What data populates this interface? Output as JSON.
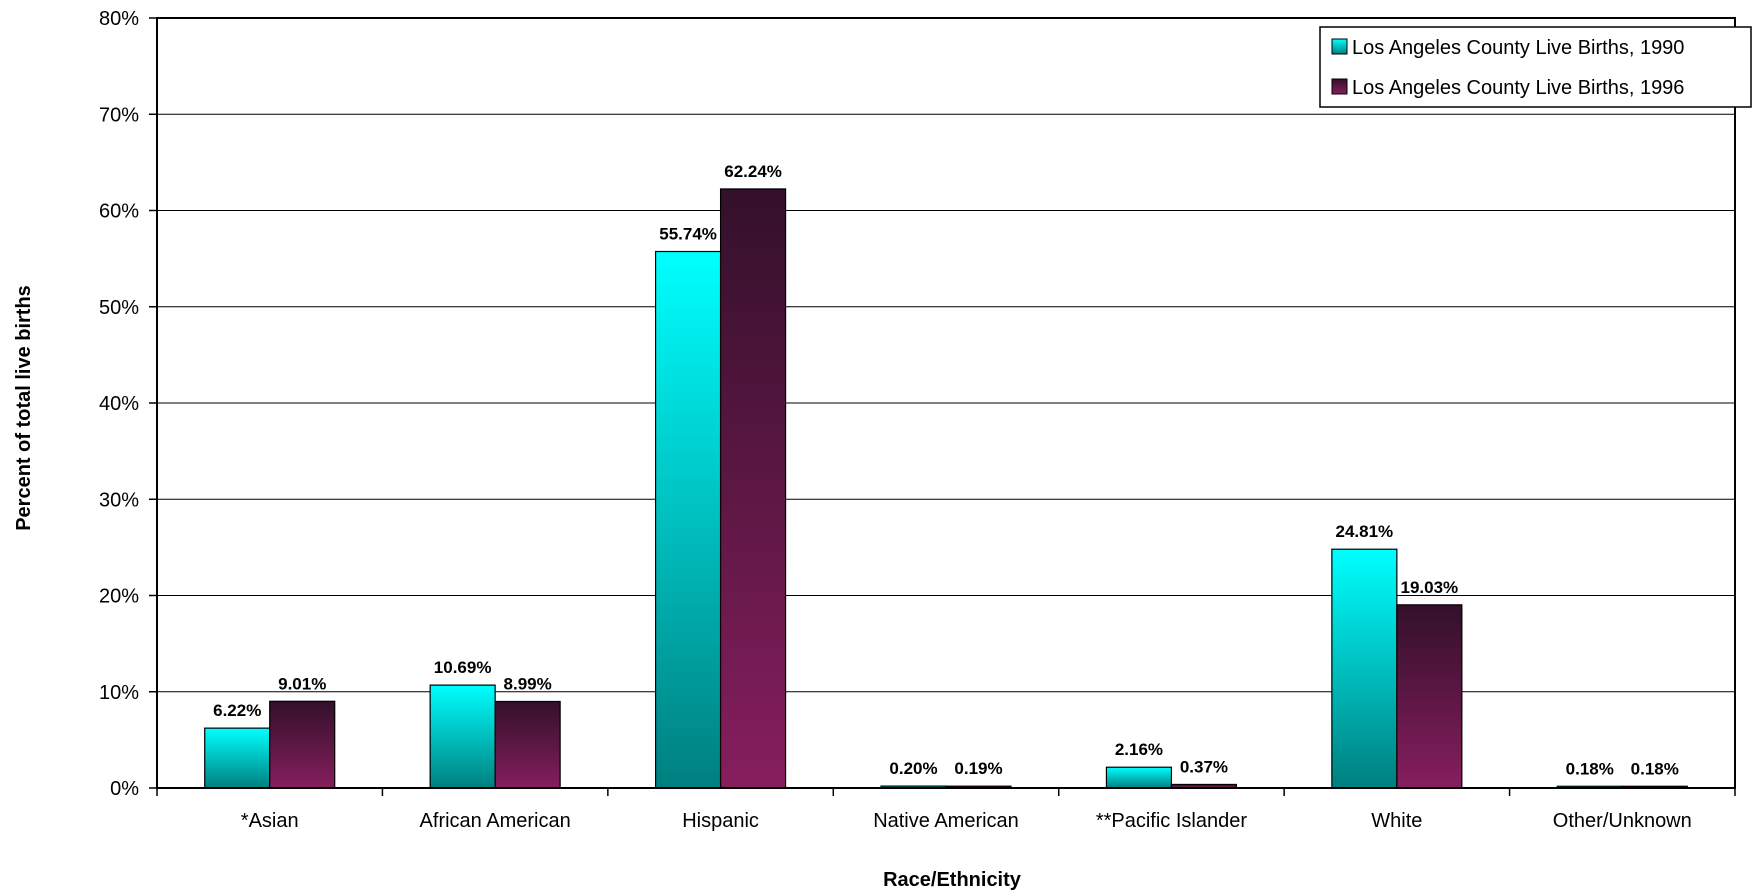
{
  "chart_data": {
    "type": "bar",
    "categories": [
      "*Asian",
      "African American",
      "Hispanic",
      "Native American",
      "**Pacific Islander",
      "White",
      "Other/Unknown"
    ],
    "series": [
      {
        "name": "Los Angeles County Live Births, 1990",
        "values": [
          6.22,
          10.69,
          55.74,
          0.2,
          2.16,
          24.81,
          0.18
        ],
        "labels": [
          "6.22%",
          "10.69%",
          "55.74%",
          "0.20%",
          "2.16%",
          "24.81%",
          "0.18%"
        ],
        "color_top": "#00ffff",
        "color_bottom": "#007f7f"
      },
      {
        "name": "Los Angeles County Live Births, 1996",
        "values": [
          9.01,
          8.99,
          62.24,
          0.19,
          0.37,
          19.03,
          0.18
        ],
        "labels": [
          "9.01%",
          "8.99%",
          "62.24%",
          "0.19%",
          "0.37%",
          "19.03%",
          "0.18%"
        ],
        "color_top": "#33102a",
        "color_bottom": "#861e5e"
      }
    ],
    "xlabel": "Race/Ethnicity",
    "ylabel": "Percent of total live births",
    "ylim": [
      0,
      80
    ],
    "yticks": [
      "0%",
      "10%",
      "20%",
      "30%",
      "40%",
      "50%",
      "60%",
      "70%",
      "80%"
    ],
    "grid": true,
    "legend_position": "top-right"
  }
}
